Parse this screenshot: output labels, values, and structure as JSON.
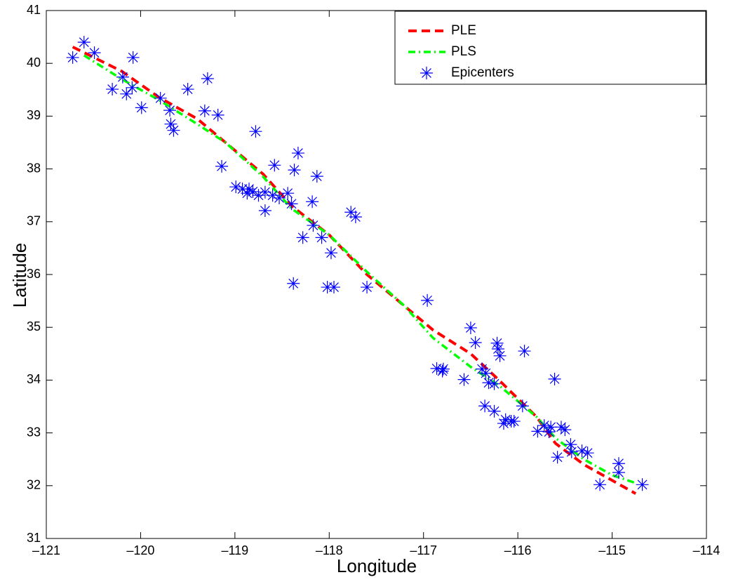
{
  "chart_data": {
    "type": "line",
    "x_label": "Longitude",
    "y_label": "Latitude",
    "xlim": [
      -121,
      -114
    ],
    "ylim": [
      31,
      41
    ],
    "xticks": [
      {
        "value": -121,
        "label": "–121"
      },
      {
        "value": -120,
        "label": "–120"
      },
      {
        "value": -119,
        "label": "–119"
      },
      {
        "value": -118,
        "label": "–118"
      },
      {
        "value": -117,
        "label": "–117"
      },
      {
        "value": -116,
        "label": "–116"
      },
      {
        "value": -115,
        "label": "–115"
      },
      {
        "value": -114,
        "label": "–114"
      }
    ],
    "yticks": [
      31,
      32,
      33,
      34,
      35,
      36,
      37,
      38,
      39,
      40,
      41
    ],
    "legend_position": "upper right",
    "series": [
      {
        "name": "PLE",
        "type": "line",
        "style": "dashed",
        "color": "#ff0000",
        "x": [
          -120.72,
          -120.2,
          -119.8,
          -119.4,
          -119.1,
          -118.7,
          -118.4,
          -118.0,
          -117.6,
          -117.2,
          -116.9,
          -116.5,
          -116.2,
          -115.8,
          -115.6,
          -115.3,
          -115.0,
          -114.75
        ],
        "values": [
          40.31,
          39.85,
          39.35,
          38.95,
          38.5,
          37.9,
          37.3,
          36.75,
          36.0,
          35.4,
          34.95,
          34.5,
          34.0,
          33.3,
          32.8,
          32.4,
          32.1,
          31.85
        ]
      },
      {
        "name": "PLS",
        "type": "line",
        "style": "dashdot",
        "color": "#00ff00",
        "x": [
          -120.6,
          -120.2,
          -119.8,
          -119.4,
          -119.1,
          -118.7,
          -118.4,
          -118.0,
          -117.6,
          -117.2,
          -116.9,
          -116.5,
          -116.2,
          -115.8,
          -115.6,
          -115.3,
          -115.0,
          -114.75
        ],
        "values": [
          40.15,
          39.7,
          39.3,
          38.85,
          38.5,
          37.85,
          37.25,
          36.75,
          36.05,
          35.4,
          34.8,
          34.25,
          33.9,
          33.3,
          32.9,
          32.5,
          32.2,
          32.05
        ]
      },
      {
        "name": "Epicenters",
        "type": "scatter",
        "marker": "asterisk",
        "color": "#0000ff",
        "x": [
          -120.72,
          -120.6,
          -120.49,
          -120.08,
          -120.19,
          -120.3,
          -120.15,
          -120.09,
          -119.99,
          -119.79,
          -119.69,
          -119.68,
          -119.65,
          -119.5,
          -119.29,
          -119.32,
          -119.18,
          -119.14,
          -118.78,
          -118.58,
          -118.33,
          -118.37,
          -118.13,
          -118.99,
          -118.92,
          -118.85,
          -118.81,
          -118.87,
          -118.75,
          -118.68,
          -118.6,
          -118.53,
          -118.68,
          -118.44,
          -118.4,
          -118.18,
          -118.17,
          -118.28,
          -118.08,
          -117.98,
          -117.77,
          -117.72,
          -118.38,
          -118.02,
          -117.95,
          -117.6,
          -116.96,
          -116.5,
          -116.45,
          -116.22,
          -116.21,
          -116.19,
          -115.93,
          -115.61,
          -116.86,
          -116.8,
          -116.79,
          -116.57,
          -116.38,
          -116.34,
          -116.31,
          -116.25,
          -116.35,
          -116.25,
          -116.13,
          -116.15,
          -116.07,
          -116.04,
          -115.95,
          -115.79,
          -115.72,
          -115.67,
          -115.65,
          -115.54,
          -115.5,
          -115.44,
          -115.43,
          -115.32,
          -115.26,
          -115.58,
          -115.13,
          -114.93,
          -114.93,
          -114.68
        ],
        "values": [
          40.11,
          40.4,
          40.2,
          40.11,
          39.74,
          39.51,
          39.42,
          39.54,
          39.16,
          39.34,
          39.11,
          38.85,
          38.73,
          39.51,
          39.71,
          39.1,
          39.02,
          38.05,
          38.71,
          38.07,
          38.3,
          37.98,
          37.86,
          37.66,
          37.62,
          37.62,
          37.57,
          37.54,
          37.5,
          37.56,
          37.5,
          37.45,
          37.21,
          37.54,
          37.34,
          37.38,
          36.93,
          36.7,
          36.7,
          36.41,
          37.18,
          37.09,
          35.83,
          35.76,
          35.76,
          35.76,
          35.51,
          34.99,
          34.71,
          34.7,
          34.59,
          34.46,
          34.55,
          34.02,
          34.22,
          34.17,
          34.21,
          34.01,
          34.21,
          34.13,
          33.95,
          33.93,
          33.51,
          33.41,
          33.25,
          33.18,
          33.22,
          33.22,
          33.51,
          33.03,
          33.14,
          33.02,
          33.11,
          33.11,
          33.06,
          32.78,
          32.64,
          32.66,
          32.62,
          32.54,
          32.02,
          32.42,
          32.25,
          32.02
        ]
      }
    ]
  }
}
